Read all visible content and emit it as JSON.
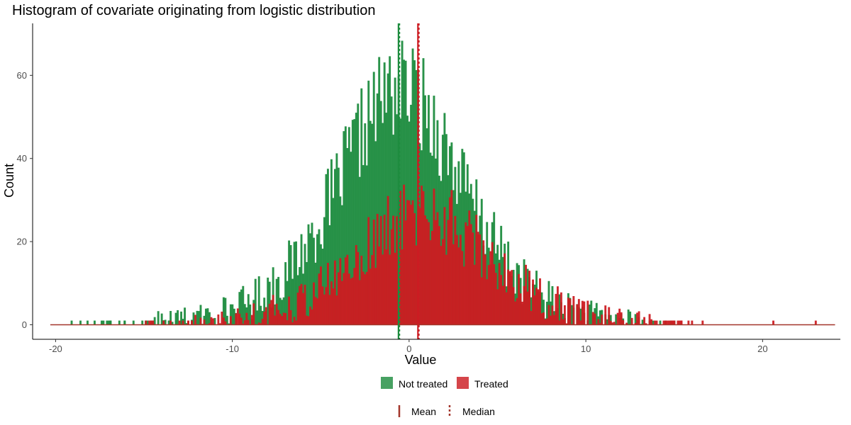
{
  "chart_data": {
    "type": "bar",
    "subtype": "overlaid-histogram",
    "title": "Histogram of covariate originating from logistic distribution",
    "xlabel": "Value",
    "ylabel": "Count",
    "xlim": [
      -21.3,
      24.4
    ],
    "ylim": [
      -3.5,
      72.5
    ],
    "x_ticks": [
      -20,
      -10,
      0,
      10,
      20
    ],
    "y_ticks": [
      0,
      20,
      40,
      60
    ],
    "grid": false,
    "legend_position": "bottom",
    "bin_width": 0.1,
    "series": [
      {
        "name": "Not treated",
        "color": "#1e8c3f",
        "mean": -0.6,
        "median": -0.55,
        "density": {
          "center": -0.5,
          "peak": 57,
          "scale": 2.35,
          "x_range": [
            -19.2,
            16.0
          ],
          "outliers": [
            -19.1,
            -17.8,
            -17.1,
            -16.9,
            -16.1,
            -15.6,
            -14.9,
            -13.9,
            -13.2,
            -12.9
          ]
        }
      },
      {
        "name": "Treated",
        "color": "#cc1c22",
        "mean": 0.5,
        "median": 0.55,
        "density": {
          "center": 0.8,
          "peak": 27,
          "scale": 2.5,
          "x_range": [
            -15.0,
            23.0
          ],
          "outliers": [
            -14.6,
            -13.9,
            -12.5,
            14.0,
            14.4,
            14.9,
            15.4,
            16.0,
            23.0
          ]
        }
      }
    ],
    "reference_lines": {
      "Not treated": {
        "mean": -0.6,
        "median": -0.55
      },
      "Treated": {
        "mean": 0.5,
        "median": 0.55
      }
    },
    "baseline_range": [
      -20.3,
      24.1
    ],
    "legend_fill": [
      {
        "label": "Not treated",
        "color": "#1e8c3f"
      },
      {
        "label": "Treated",
        "color": "#cc1c22"
      }
    ],
    "legend_line": [
      {
        "label": "Mean",
        "style": "solid"
      },
      {
        "label": "Median",
        "style": "dotted"
      }
    ],
    "legend_line_color": "#a3362b"
  }
}
